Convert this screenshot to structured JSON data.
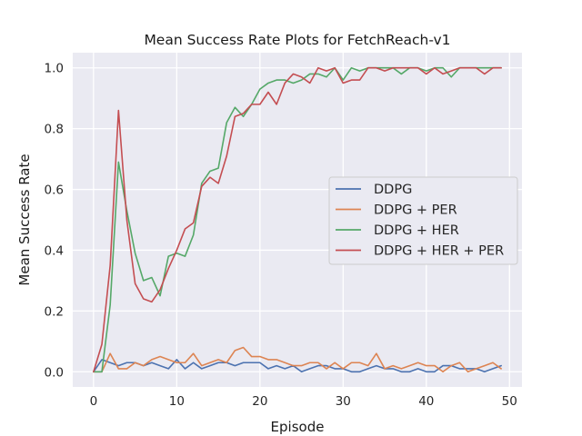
{
  "chart_data": {
    "type": "line",
    "title": "Mean Success Rate Plots for FetchReach-v1",
    "xlabel": "Episode",
    "ylabel": "Mean Success Rate",
    "xlim": [
      -2.5,
      51.5
    ],
    "ylim": [
      -0.05,
      1.05
    ],
    "xticks": [
      0,
      10,
      20,
      30,
      40,
      50
    ],
    "yticks": [
      0.0,
      0.2,
      0.4,
      0.6,
      0.8,
      1.0
    ],
    "xtick_labels": [
      "0",
      "10",
      "20",
      "30",
      "40",
      "50"
    ],
    "ytick_labels": [
      "0.0",
      "0.2",
      "0.4",
      "0.6",
      "0.8",
      "1.0"
    ],
    "grid": true,
    "legend_position": "center-right",
    "x": [
      0,
      1,
      2,
      3,
      4,
      5,
      6,
      7,
      8,
      9,
      10,
      11,
      12,
      13,
      14,
      15,
      16,
      17,
      18,
      19,
      20,
      21,
      22,
      23,
      24,
      25,
      26,
      27,
      28,
      29,
      30,
      31,
      32,
      33,
      34,
      35,
      36,
      37,
      38,
      39,
      40,
      41,
      42,
      43,
      44,
      45,
      46,
      47,
      48,
      49
    ],
    "series": [
      {
        "name": "DDPG",
        "color": "#4c72b0",
        "values": [
          0.0,
          0.04,
          0.03,
          0.02,
          0.03,
          0.03,
          0.02,
          0.03,
          0.02,
          0.01,
          0.04,
          0.01,
          0.03,
          0.01,
          0.02,
          0.03,
          0.03,
          0.02,
          0.03,
          0.03,
          0.03,
          0.01,
          0.02,
          0.01,
          0.02,
          0.0,
          0.01,
          0.02,
          0.02,
          0.01,
          0.01,
          0.0,
          0.0,
          0.01,
          0.02,
          0.01,
          0.01,
          0.0,
          0.0,
          0.01,
          0.0,
          0.0,
          0.02,
          0.02,
          0.01,
          0.01,
          0.01,
          0.0,
          0.01,
          0.02
        ]
      },
      {
        "name": "DDPG + PER",
        "color": "#dd8452",
        "values": [
          0.0,
          0.0,
          0.06,
          0.01,
          0.01,
          0.03,
          0.02,
          0.04,
          0.05,
          0.04,
          0.03,
          0.03,
          0.06,
          0.02,
          0.03,
          0.04,
          0.03,
          0.07,
          0.08,
          0.05,
          0.05,
          0.04,
          0.04,
          0.03,
          0.02,
          0.02,
          0.03,
          0.03,
          0.01,
          0.03,
          0.01,
          0.03,
          0.03,
          0.02,
          0.06,
          0.01,
          0.02,
          0.01,
          0.02,
          0.03,
          0.02,
          0.02,
          0.0,
          0.02,
          0.03,
          0.0,
          0.01,
          0.02,
          0.03,
          0.01
        ]
      },
      {
        "name": "DDPG + HER",
        "color": "#55a868",
        "values": [
          0.0,
          0.0,
          0.22,
          0.69,
          0.53,
          0.39,
          0.3,
          0.31,
          0.25,
          0.38,
          0.39,
          0.38,
          0.45,
          0.62,
          0.66,
          0.67,
          0.82,
          0.87,
          0.84,
          0.88,
          0.93,
          0.95,
          0.96,
          0.96,
          0.95,
          0.96,
          0.98,
          0.98,
          0.97,
          1.0,
          0.96,
          1.0,
          0.99,
          1.0,
          1.0,
          1.0,
          1.0,
          0.98,
          1.0,
          1.0,
          0.99,
          1.0,
          1.0,
          0.97,
          1.0,
          1.0,
          1.0,
          1.0,
          1.0,
          1.0
        ]
      },
      {
        "name": "DDPG + HER + PER",
        "color": "#c44e52",
        "values": [
          0.0,
          0.09,
          0.35,
          0.86,
          0.5,
          0.29,
          0.24,
          0.23,
          0.27,
          0.34,
          0.4,
          0.47,
          0.49,
          0.61,
          0.64,
          0.62,
          0.71,
          0.84,
          0.85,
          0.88,
          0.88,
          0.92,
          0.88,
          0.95,
          0.98,
          0.97,
          0.95,
          1.0,
          0.99,
          1.0,
          0.95,
          0.96,
          0.96,
          1.0,
          1.0,
          0.99,
          1.0,
          1.0,
          1.0,
          1.0,
          0.98,
          1.0,
          0.98,
          0.99,
          1.0,
          1.0,
          1.0,
          0.98,
          1.0,
          1.0
        ]
      }
    ]
  }
}
